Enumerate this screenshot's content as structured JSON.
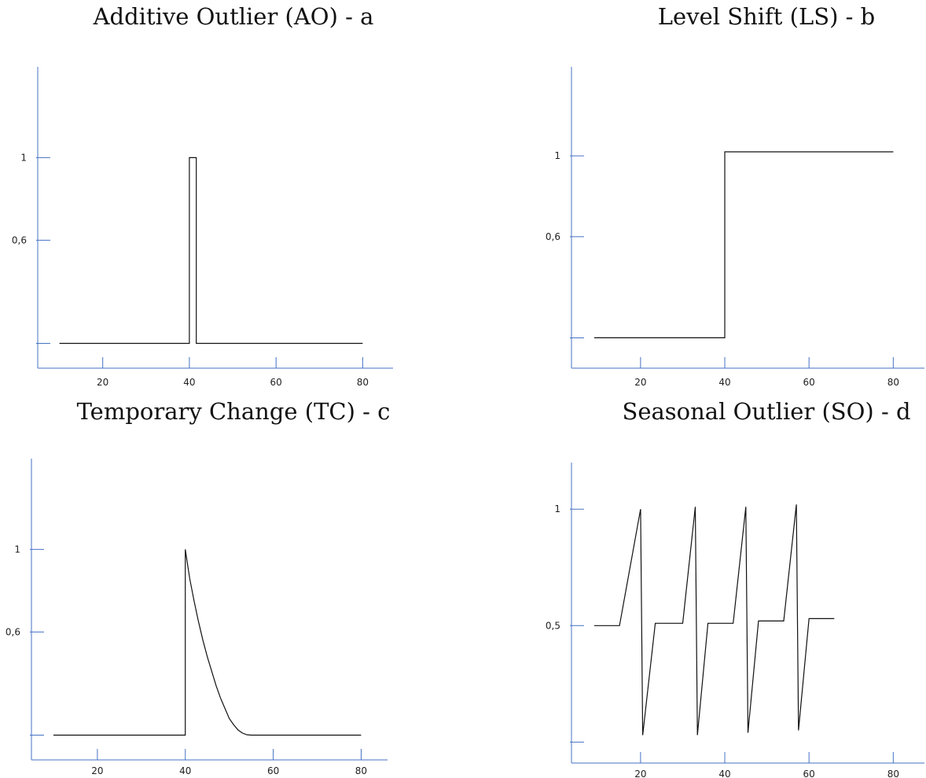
{
  "chart_data": [
    {
      "type": "line",
      "title": "Additive Outlier (AO) - a",
      "xlabel": "",
      "ylabel": "",
      "x_ticks": [
        20,
        40,
        60,
        80
      ],
      "x_tick_labels": [
        "20",
        "40",
        "60",
        "80"
      ],
      "y_ticks": [
        0.1,
        0.6,
        1
      ],
      "y_tick_labels": [
        "",
        "0,6",
        "1"
      ],
      "xlim": [
        5,
        87
      ],
      "ylim": [
        -0.02,
        1.44
      ],
      "grid": false,
      "series": [
        {
          "x": [
            10,
            40,
            40,
            41.6,
            41.6,
            80
          ],
          "y": [
            0.1,
            0.1,
            1,
            1,
            0.1,
            0.1
          ]
        }
      ]
    },
    {
      "type": "line",
      "title": "Level Shift (LS) - b",
      "xlabel": "",
      "ylabel": "",
      "x_ticks": [
        20,
        40,
        60,
        80
      ],
      "x_tick_labels": [
        "20",
        "40",
        "60",
        "80"
      ],
      "y_ticks": [
        0.1,
        0.6,
        1
      ],
      "y_tick_labels": [
        "",
        "0,6",
        "1"
      ],
      "xlim": [
        3.6,
        87.4
      ],
      "ylim": [
        -0.05,
        1.44
      ],
      "grid": false,
      "series": [
        {
          "x": [
            9,
            40,
            40,
            80
          ],
          "y": [
            0.1,
            0.1,
            1.02,
            1.02
          ]
        }
      ]
    },
    {
      "type": "line",
      "title": "Temporary Change (TC) - c",
      "xlabel": "",
      "ylabel": "",
      "x_ticks": [
        20,
        40,
        60,
        80
      ],
      "x_tick_labels": [
        "20",
        "40",
        "60",
        "80"
      ],
      "y_ticks": [
        0.1,
        0.6,
        1
      ],
      "y_tick_labels": [
        "",
        "0,6",
        "1"
      ],
      "xlim": [
        5,
        86
      ],
      "ylim": [
        -0.02,
        1.44
      ],
      "grid": false,
      "series": [
        {
          "x": [
            10,
            40,
            40,
            40.5,
            41,
            42,
            43,
            44,
            45,
            46,
            47,
            48,
            49,
            50,
            51,
            52,
            53,
            54,
            55,
            60,
            70,
            80
          ],
          "y": [
            0.1,
            0.1,
            1.0,
            0.93,
            0.86,
            0.75,
            0.65,
            0.56,
            0.48,
            0.41,
            0.34,
            0.28,
            0.23,
            0.18,
            0.15,
            0.125,
            0.11,
            0.102,
            0.1,
            0.1,
            0.1,
            0.1
          ]
        }
      ]
    },
    {
      "type": "line",
      "title": "Seasonal Outlier (SO) - d",
      "xlabel": "",
      "ylabel": "",
      "x_ticks": [
        20,
        40,
        60,
        80
      ],
      "x_tick_labels": [
        "20",
        "40",
        "60",
        "80"
      ],
      "y_ticks": [
        0,
        0.5,
        1
      ],
      "y_tick_labels": [
        "",
        "0,5",
        "1"
      ],
      "xlim": [
        3.6,
        87.4
      ],
      "ylim": [
        -0.09,
        1.2
      ],
      "grid": false,
      "series": [
        {
          "x": [
            9,
            15,
            20,
            20.5,
            23.5,
            30,
            33,
            33.5,
            36,
            42,
            45,
            45.5,
            48,
            54,
            57,
            57.5,
            60,
            66
          ],
          "y": [
            0.5,
            0.5,
            1.0,
            0.03,
            0.51,
            0.51,
            1.01,
            0.03,
            0.51,
            0.51,
            1.01,
            0.04,
            0.52,
            0.52,
            1.02,
            0.05,
            0.53,
            0.53
          ]
        }
      ]
    }
  ]
}
